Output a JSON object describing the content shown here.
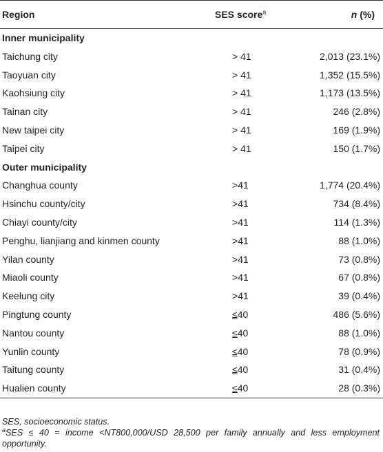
{
  "header": {
    "region": "Region",
    "ses": "SES score",
    "ses_sup": "a",
    "n_italic": "n",
    "n_pct": " (%)"
  },
  "sections": [
    {
      "title": "Inner municipality",
      "rows": [
        {
          "region": "Taichung city",
          "ses_op": "> ",
          "ses_val": "41",
          "n": "2,013 (23.1%)"
        },
        {
          "region": "Taoyuan city",
          "ses_op": "> ",
          "ses_val": "41",
          "n": "1,352 (15.5%)"
        },
        {
          "region": "Kaohsiung city",
          "ses_op": "> ",
          "ses_val": "41",
          "n": "1,173 (13.5%)"
        },
        {
          "region": "Tainan city",
          "ses_op": "> ",
          "ses_val": "41",
          "n": "246 (2.8%)"
        },
        {
          "region": "New taipei city",
          "ses_op": "> ",
          "ses_val": "41",
          "n": "169 (1.9%)"
        },
        {
          "region": "Taipei city",
          "ses_op": "> ",
          "ses_val": "41",
          "n": "150 (1.7%)"
        }
      ]
    },
    {
      "title": "Outer municipality",
      "rows": [
        {
          "region": "Changhua county",
          "ses_op": ">",
          "ses_val": "41",
          "n": "1,774 (20.4%)"
        },
        {
          "region": "Hsinchu county/city",
          "ses_op": ">",
          "ses_val": "41",
          "n": "734 (8.4%)"
        },
        {
          "region": "Chiayi county/city",
          "ses_op": ">",
          "ses_val": "41",
          "n": "114 (1.3%)"
        },
        {
          "region": "Penghu, lianjiang and kinmen county",
          "ses_op": ">",
          "ses_val": "41",
          "n": "88 (1.0%)"
        },
        {
          "region": "Yilan county",
          "ses_op": ">",
          "ses_val": "41",
          "n": "73 (0.8%)"
        },
        {
          "region": "Miaoli county",
          "ses_op": ">",
          "ses_val": "41",
          "n": "67 (0.8%)"
        },
        {
          "region": "Keelung city",
          "ses_op": ">",
          "ses_val": "41",
          "n": "39 (0.4%)"
        },
        {
          "region": "Pingtung county",
          "ses_op": "≤",
          "ses_val": "40",
          "n": "486 (5.6%)"
        },
        {
          "region": "Nantou county",
          "ses_op": "≤",
          "ses_val": "40",
          "n": "88 (1.0%)"
        },
        {
          "region": "Yunlin county",
          "ses_op": "≤",
          "ses_val": "40",
          "n": "78 (0.9%)"
        },
        {
          "region": "Taitung county",
          "ses_op": "≤",
          "ses_val": "40",
          "n": "31 (0.4%)"
        },
        {
          "region": "Hualien county",
          "ses_op": "≤",
          "ses_val": "40",
          "n": "28 (0.3%)"
        }
      ]
    }
  ],
  "footnotes": {
    "abbrev": "SES, socioeconomic status.",
    "note_sup": "a",
    "note_text": "SES ≤ 40 = income <NT800,000/USD 28,500 per family annually and less employment opportunity."
  }
}
